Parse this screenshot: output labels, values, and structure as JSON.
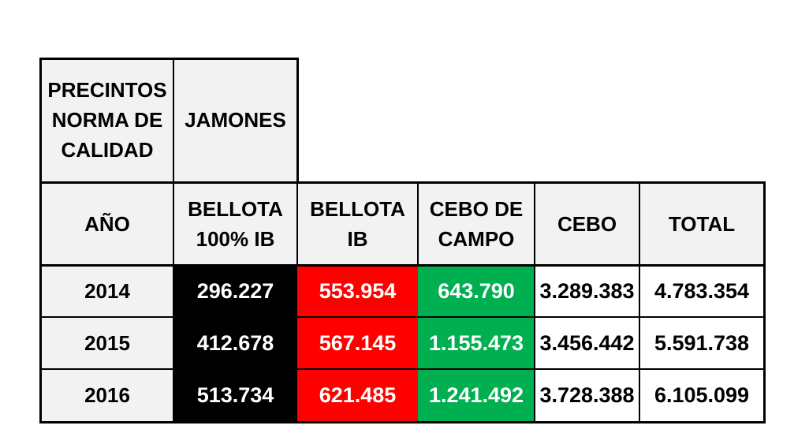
{
  "table": {
    "top_header": {
      "title_lines": [
        "PRECINTOS",
        "NORMA DE",
        "CALIDAD"
      ],
      "group_label": "JAMONES"
    },
    "columns": [
      {
        "key": "year",
        "lines": [
          "AÑO"
        ]
      },
      {
        "key": "bellota_100",
        "lines": [
          "BELLOTA",
          "100% IB"
        ],
        "color": "#000000"
      },
      {
        "key": "bellota_ib",
        "lines": [
          "BELLOTA IB"
        ],
        "color": "#ff0000"
      },
      {
        "key": "cebo_campo",
        "lines": [
          "CEBO DE",
          "CAMPO"
        ],
        "color": "#00b050"
      },
      {
        "key": "cebo",
        "lines": [
          "CEBO"
        ],
        "color": "#ffffff"
      },
      {
        "key": "total",
        "lines": [
          "TOTAL"
        ],
        "color": "#ffffff"
      }
    ],
    "rows": [
      {
        "year": "2014",
        "bellota_100": "296.227",
        "bellota_ib": "553.954",
        "cebo_campo": "643.790",
        "cebo": "3.289.383",
        "total": "4.783.354"
      },
      {
        "year": "2015",
        "bellota_100": "412.678",
        "bellota_ib": "567.145",
        "cebo_campo": "1.155.473",
        "cebo": "3.456.442",
        "total": "5.591.738"
      },
      {
        "year": "2016",
        "bellota_100": "513.734",
        "bellota_ib": "621.485",
        "cebo_campo": "1.241.492",
        "cebo": "3.728.388",
        "total": "6.105.099"
      }
    ]
  }
}
